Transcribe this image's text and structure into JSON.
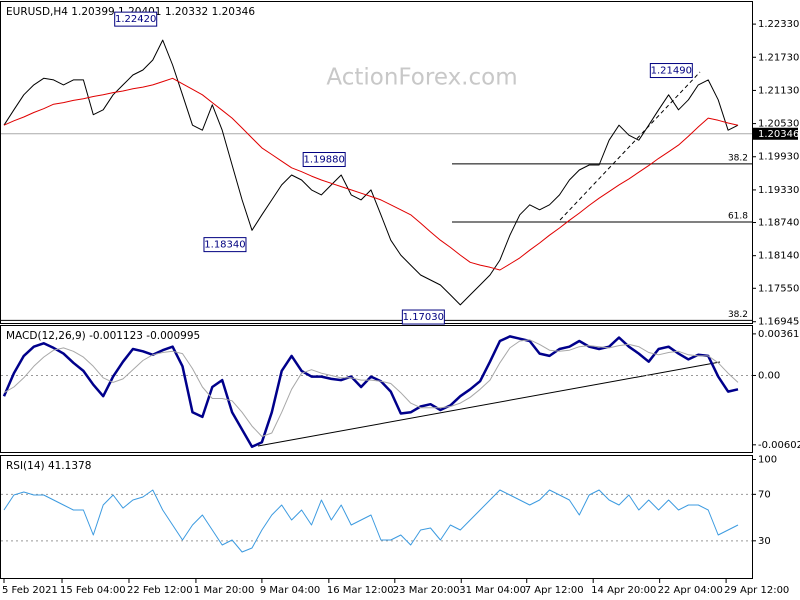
{
  "chart_data": [
    {
      "type": "line",
      "title": "EURUSD,H4  1.20399 1.20401 1.20332 1.20346",
      "watermark": "ActionForex.com",
      "xlim": [
        0,
        74
      ],
      "ylim": [
        1.1694,
        1.2273
      ],
      "yticks": [
        {
          "value": 1.2233,
          "label": "1.22330"
        },
        {
          "value": 1.2173,
          "label": "1.21730"
        },
        {
          "value": 1.2113,
          "label": "1.21130"
        },
        {
          "value": 1.2053,
          "label": "1.20530"
        },
        {
          "value": 1.1993,
          "label": "1.19930"
        },
        {
          "value": 1.1933,
          "label": "1.19330"
        },
        {
          "value": 1.1874,
          "label": "1.18740"
        },
        {
          "value": 1.1814,
          "label": "1.18140"
        },
        {
          "value": 1.1755,
          "label": "1.17550"
        },
        1.16945
      ],
      "series": [
        {
          "color": "#000000",
          "values": [
            1.205,
            1.2078,
            1.2105,
            1.2123,
            1.2135,
            1.2132,
            1.2123,
            1.2132,
            1.2132,
            1.2069,
            1.2078,
            1.2105,
            1.2123,
            1.2141,
            1.215,
            1.2168,
            1.2204,
            1.2159,
            1.2105,
            1.205,
            1.2041,
            1.2087,
            1.2041,
            1.1978,
            1.1915,
            1.186,
            1.1888,
            1.1915,
            1.1942,
            1.196,
            1.1951,
            1.1933,
            1.1924,
            1.1942,
            1.196,
            1.1924,
            1.1915,
            1.1933,
            1.1888,
            1.1842,
            1.1815,
            1.1797,
            1.1779,
            1.177,
            1.1761,
            1.1743,
            1.1725,
            1.1743,
            1.1761,
            1.1779,
            1.1806,
            1.1851,
            1.1888,
            1.1906,
            1.1897,
            1.1906,
            1.1924,
            1.1951,
            1.1969,
            1.1978,
            1.1978,
            1.2023,
            1.205,
            1.2032,
            1.2023,
            1.205,
            1.2078,
            1.2105,
            1.2078,
            1.2096,
            1.2123,
            1.2132,
            1.2096,
            1.2041,
            1.205
          ]
        },
        {
          "color": "#e00000",
          "values": [
            1.205,
            1.2058,
            1.2065,
            1.2073,
            1.208,
            1.2088,
            1.2091,
            1.2095,
            1.2098,
            1.2102,
            1.2105,
            1.2109,
            1.2112,
            1.2116,
            1.2119,
            1.2123,
            1.2129,
            1.2135,
            1.2125,
            1.2115,
            1.2105,
            1.2091,
            1.2077,
            1.2063,
            1.2045,
            1.2027,
            1.2009,
            1.1997,
            1.1985,
            1.1973,
            1.1966,
            1.1958,
            1.1951,
            1.1945,
            1.1939,
            1.1933,
            1.1927,
            1.1921,
            1.1915,
            1.1906,
            1.1897,
            1.1888,
            1.1873,
            1.1857,
            1.1842,
            1.1829,
            1.1815,
            1.1802,
            1.1797,
            1.1793,
            1.1788,
            1.1799,
            1.181,
            1.1824,
            1.1837,
            1.1851,
            1.1864,
            1.1878,
            1.1891,
            1.1905,
            1.1918,
            1.193,
            1.1942,
            1.1953,
            1.1965,
            1.1977,
            1.199,
            1.2002,
            1.2014,
            1.203,
            1.2047,
            1.2063,
            1.2059,
            1.2054,
            1.205
          ]
        }
      ],
      "annotations": [
        {
          "x": 16,
          "value": 1.2242,
          "label": "1.22420"
        },
        {
          "x": 35,
          "value": 1.1988,
          "label": "1.19880"
        },
        {
          "x": 25,
          "value": 1.1834,
          "label": "1.18340"
        },
        {
          "x": 45,
          "value": 1.1703,
          "label": "1.17030"
        },
        {
          "x": 70,
          "value": 1.2149,
          "label": "1.21490"
        }
      ],
      "fib_levels": [
        {
          "value": 1.198,
          "label": "38.2"
        },
        {
          "value": 1.1875,
          "label": "61.8"
        },
        {
          "value": 1.1697,
          "label": "38.2"
        }
      ],
      "current_price": {
        "value": 1.20346,
        "label": "1.20346"
      }
    },
    {
      "type": "line",
      "title": "MACD(12,26,9) -0.001123 -0.000995",
      "xlim": [
        0,
        74
      ],
      "ylim": [
        -0.00665,
        0.0043
      ],
      "yticks": [
        0.003615,
        {
          "value": 0,
          "label": "0.00"
        },
        -0.006026
      ],
      "levels": [
        0
      ],
      "series": [
        {
          "color": "#00008b",
          "values": [
            -0.0018,
            0.0002,
            0.0017,
            0.0025,
            0.0028,
            0.0024,
            0.0019,
            0.0011,
            0.0004,
            -0.0008,
            -0.0018,
            -0.0001,
            0.0012,
            0.0023,
            0.0021,
            0.0018,
            0.0022,
            0.0025,
            0.0008,
            -0.0032,
            -0.0036,
            -0.001,
            -0.0004,
            -0.0032,
            -0.0047,
            -0.0062,
            -0.0058,
            -0.0032,
            0.0004,
            0.0017,
            0.0004,
            -0.0001,
            -0.0001,
            -0.0003,
            -0.0004,
            -0.0001,
            -0.001,
            -0.0001,
            -0.0005,
            -0.0014,
            -0.0033,
            -0.0032,
            -0.0027,
            -0.0025,
            -0.003,
            -0.0026,
            -0.0018,
            -0.0012,
            -0.0005,
            0.0012,
            0.003,
            0.0034,
            0.0032,
            0.003,
            0.0019,
            0.0017,
            0.0023,
            0.0025,
            0.003,
            0.0025,
            0.0023,
            0.0025,
            0.0033,
            0.0025,
            0.0019,
            0.0012,
            0.0023,
            0.0025,
            0.0019,
            0.0014,
            0.0018,
            0.0017,
            -0.0001,
            -0.0014,
            -0.0012
          ]
        },
        {
          "color": "#a8a8a8",
          "values": [
            -0.0015,
            -0.001,
            -0.0002,
            0.0008,
            0.0016,
            0.0022,
            0.0024,
            0.0021,
            0.0016,
            0.0008,
            -0.0002,
            -0.0006,
            -0.0003,
            0.0005,
            0.0013,
            0.0018,
            0.002,
            0.0021,
            0.0019,
            0.0006,
            -0.001,
            -0.002,
            -0.002,
            -0.0022,
            -0.0032,
            -0.0044,
            -0.0053,
            -0.005,
            -0.0032,
            -0.0012,
            0.0002,
            0.0005,
            0.0002,
            0,
            -0.0002,
            -0.0002,
            -0.0004,
            -0.0004,
            -0.0005,
            -0.0007,
            -0.0015,
            -0.0024,
            -0.0028,
            -0.0028,
            -0.0028,
            -0.0027,
            -0.0024,
            -0.0019,
            -0.0012,
            -0.0004,
            0.0011,
            0.0024,
            0.003,
            0.0031,
            0.0027,
            0.0022,
            0.0021,
            0.0022,
            0.0025,
            0.0026,
            0.0025,
            0.0024,
            0.0026,
            0.0027,
            0.0025,
            0.002,
            0.0018,
            0.002,
            0.0021,
            0.0018,
            0.0017,
            0.0017,
            0.0011,
            0.0002,
            -0.0006
          ]
        }
      ]
    },
    {
      "type": "line",
      "title": "RSI(14) 41.1378",
      "xlim": [
        0,
        74
      ],
      "ylim": [
        -2,
        103
      ],
      "yticks": [
        100,
        70,
        30
      ],
      "levels": [
        70,
        30
      ],
      "series": [
        {
          "color": "#3d9be0",
          "values": [
            56.5,
            69.4,
            72,
            69.4,
            69.4,
            65.1,
            60.8,
            56.5,
            56.5,
            35,
            60.8,
            69.4,
            58.2,
            65.1,
            67.7,
            73.7,
            56.5,
            43.6,
            30.7,
            43.6,
            52.2,
            39.3,
            26.4,
            30.7,
            20.4,
            23.8,
            39.3,
            52.2,
            60.8,
            47.9,
            56.5,
            43.6,
            65.1,
            47.9,
            60.8,
            43.6,
            47.9,
            52.2,
            30.7,
            30.7,
            35,
            26.4,
            39.3,
            41,
            30.7,
            43.6,
            39.3,
            47.9,
            56.5,
            65.1,
            73.7,
            69.4,
            65.1,
            60.8,
            65.1,
            73.7,
            69.4,
            65.1,
            52.2,
            69.4,
            73.7,
            65.1,
            60.8,
            69.4,
            56.5,
            65.1,
            56.5,
            65.1,
            56.5,
            60.8,
            60.8,
            56.5,
            35,
            39.3,
            43.6
          ]
        }
      ],
      "xticks": [
        {
          "value": 0,
          "label": "5 Feb 2021"
        },
        {
          "value": 5.85,
          "label": "15 Feb 04:00"
        },
        {
          "value": 12.6,
          "label": "22 Feb 12:00"
        },
        {
          "value": 19.35,
          "label": "1 Mar 20:00"
        },
        {
          "value": 26,
          "label": "9 Mar 04:00"
        },
        {
          "value": 32.75,
          "label": "16 Mar 12:00"
        },
        {
          "value": 39.4,
          "label": "23 Mar 20:00"
        },
        {
          "value": 46.1,
          "label": "31 Mar 04:00"
        },
        {
          "value": 52.7,
          "label": "7 Apr 12:00"
        },
        {
          "value": 59.4,
          "label": "14 Apr 20:00"
        },
        {
          "value": 66.1,
          "label": "22 Apr 04:00"
        },
        {
          "value": 72.8,
          "label": "29 Apr 12:00"
        }
      ]
    }
  ]
}
